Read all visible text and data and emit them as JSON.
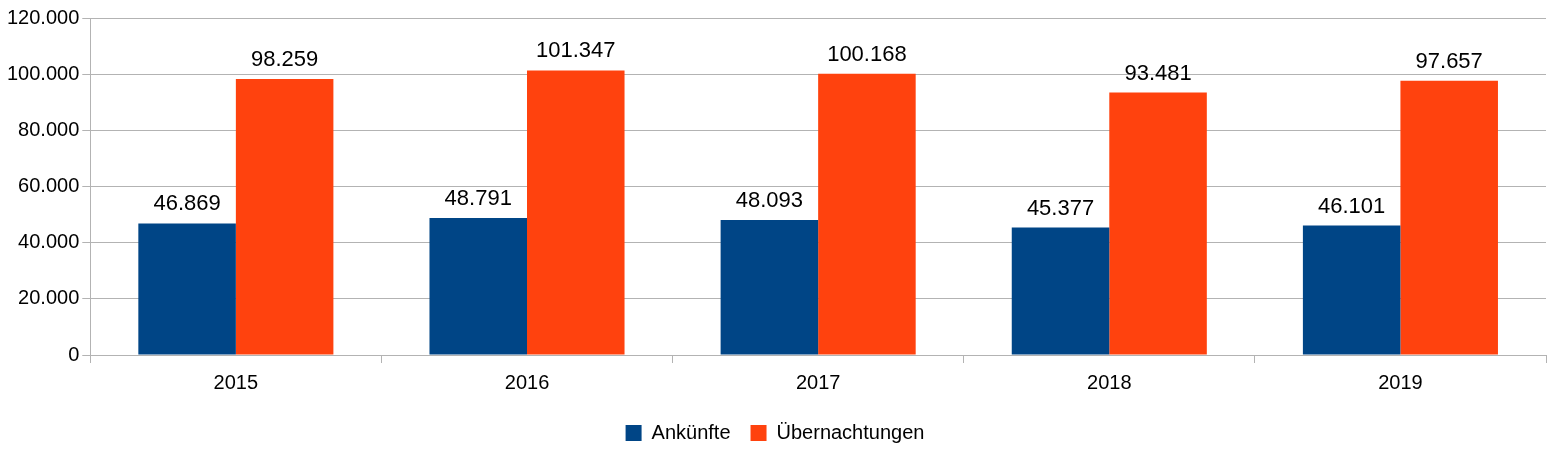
{
  "chart_data": {
    "type": "bar",
    "categories": [
      "2015",
      "2016",
      "2017",
      "2018",
      "2019"
    ],
    "series": [
      {
        "name": "Ankünfte",
        "color": "#004586",
        "values": [
          46869,
          48791,
          48093,
          45377,
          46101
        ],
        "value_labels": [
          "46.869",
          "48.791",
          "48.093",
          "45.377",
          "46.101"
        ]
      },
      {
        "name": "Übernachtungen",
        "color": "#ff420e",
        "values": [
          98259,
          101347,
          100168,
          93481,
          97657
        ],
        "value_labels": [
          "98.259",
          "101.347",
          "100.168",
          "93.481",
          "97.657"
        ]
      }
    ],
    "ylim": [
      0,
      120000
    ],
    "yticks": [
      {
        "value": 0,
        "label": "0"
      },
      {
        "value": 20000,
        "label": "20.000"
      },
      {
        "value": 40000,
        "label": "40.000"
      },
      {
        "value": 60000,
        "label": "60.000"
      },
      {
        "value": 80000,
        "label": "80.000"
      },
      {
        "value": 100000,
        "label": "100.000"
      },
      {
        "value": 120000,
        "label": "120.000"
      }
    ],
    "grid": "y",
    "legend": "bottom"
  }
}
